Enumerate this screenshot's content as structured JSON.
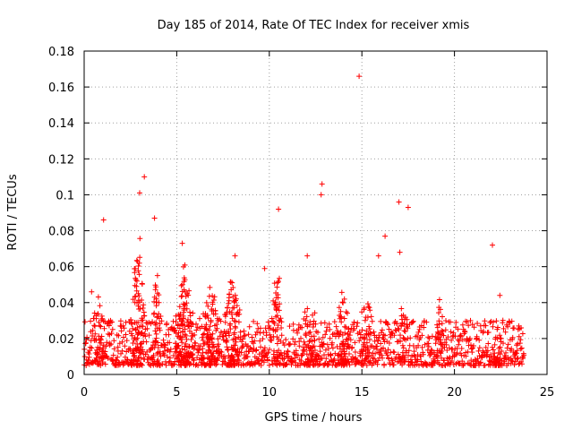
{
  "chart_data": {
    "type": "scatter",
    "title": "Day 185 of 2014, Rate Of TEC Index for receiver xmis",
    "xlabel": "GPS time / hours",
    "ylabel": "ROTI / TECUs",
    "xlim": [
      0,
      25
    ],
    "ylim": [
      0,
      0.18
    ],
    "x_ticks": [
      0,
      5,
      10,
      15,
      20,
      25
    ],
    "y_ticks": [
      0,
      0.02,
      0.04,
      0.06,
      0.08,
      0.1,
      0.12,
      0.14,
      0.16,
      0.18
    ],
    "x_tick_labels": [
      "0",
      "5",
      "10",
      "15",
      "20",
      "25"
    ],
    "y_tick_labels": [
      "0",
      "0.02",
      "0.04",
      "0.06",
      "0.08",
      "0.1",
      "0.12",
      "0.14",
      "0.16",
      "0.18"
    ],
    "grid": true,
    "marker": "plus",
    "marker_color": "#ff0000",
    "data_range_hours": [
      0,
      23.75
    ],
    "baseline_band": [
      0.005,
      0.03
    ],
    "series": [
      {
        "name": "ROTI",
        "notable_points": [
          {
            "x": 14.85,
            "y": 0.166
          },
          {
            "x": 3.25,
            "y": 0.11
          },
          {
            "x": 3.0,
            "y": 0.101
          },
          {
            "x": 12.85,
            "y": 0.106
          },
          {
            "x": 12.8,
            "y": 0.1
          },
          {
            "x": 17.0,
            "y": 0.096
          },
          {
            "x": 17.5,
            "y": 0.093
          },
          {
            "x": 10.5,
            "y": 0.092
          },
          {
            "x": 1.05,
            "y": 0.086
          },
          {
            "x": 3.8,
            "y": 0.087
          },
          {
            "x": 16.25,
            "y": 0.077
          },
          {
            "x": 22.05,
            "y": 0.072
          },
          {
            "x": 5.3,
            "y": 0.073
          },
          {
            "x": 12.05,
            "y": 0.066
          },
          {
            "x": 17.05,
            "y": 0.068
          },
          {
            "x": 8.15,
            "y": 0.066
          },
          {
            "x": 15.9,
            "y": 0.066
          },
          {
            "x": 9.75,
            "y": 0.059
          },
          {
            "x": 0.4,
            "y": 0.046
          },
          {
            "x": 22.45,
            "y": 0.044
          }
        ],
        "bursts": [
          {
            "center": 0.8,
            "width": 0.8,
            "top": 0.045,
            "density": 1.5
          },
          {
            "center": 2.9,
            "width": 0.9,
            "top": 0.095,
            "density": 3.0
          },
          {
            "center": 3.9,
            "width": 0.6,
            "top": 0.07,
            "density": 2.0
          },
          {
            "center": 5.4,
            "width": 1.2,
            "top": 0.07,
            "density": 3.0
          },
          {
            "center": 6.8,
            "width": 1.2,
            "top": 0.055,
            "density": 2.0
          },
          {
            "center": 8.0,
            "width": 1.0,
            "top": 0.065,
            "density": 2.5
          },
          {
            "center": 10.4,
            "width": 0.6,
            "top": 0.085,
            "density": 2.0
          },
          {
            "center": 12.2,
            "width": 1.0,
            "top": 0.045,
            "density": 1.5
          },
          {
            "center": 14.0,
            "width": 0.8,
            "top": 0.055,
            "density": 2.0
          },
          {
            "center": 15.2,
            "width": 0.8,
            "top": 0.05,
            "density": 1.5
          },
          {
            "center": 17.2,
            "width": 0.6,
            "top": 0.04,
            "density": 1.0
          },
          {
            "center": 19.2,
            "width": 0.5,
            "top": 0.05,
            "density": 1.5
          },
          {
            "center": 22.3,
            "width": 0.8,
            "top": 0.035,
            "density": 1.0
          }
        ]
      }
    ]
  }
}
